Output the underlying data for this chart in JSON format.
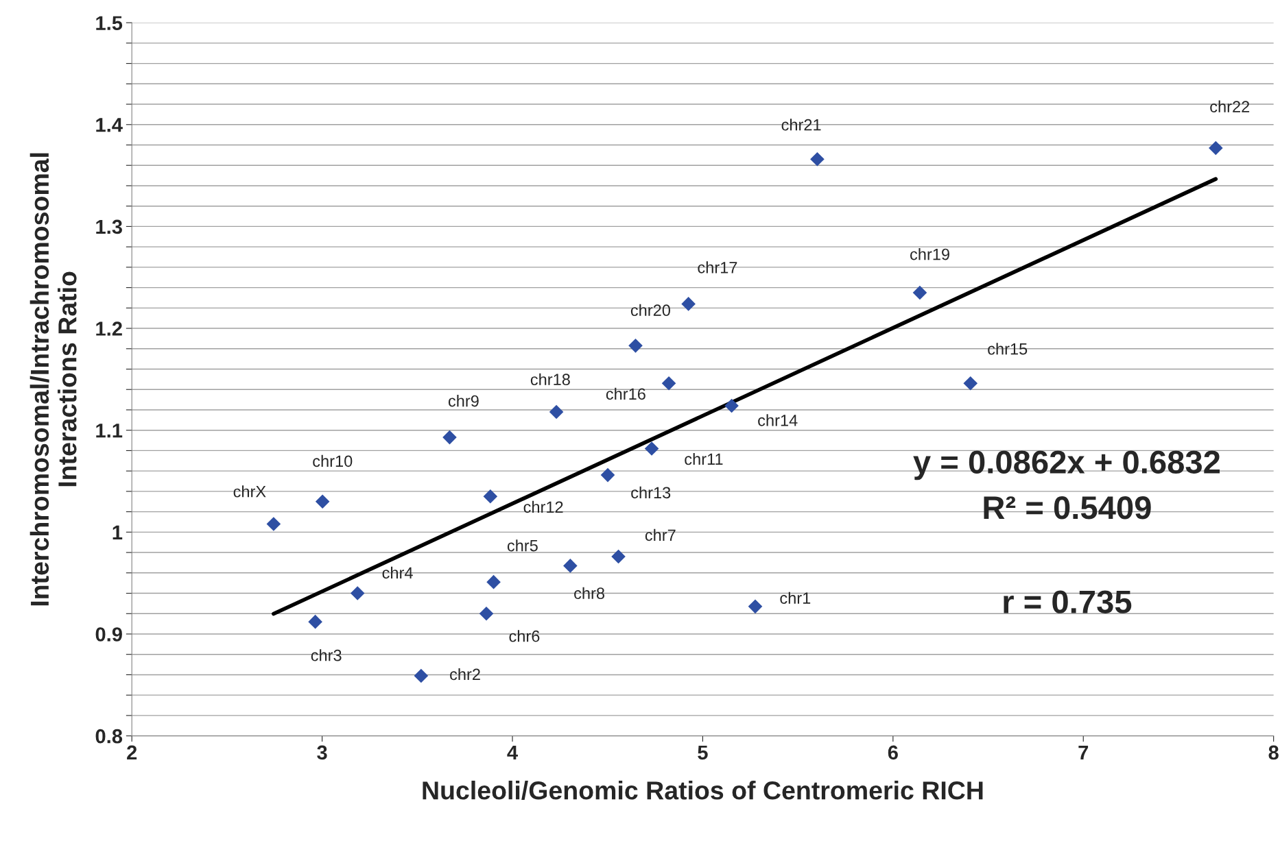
{
  "chart_data": {
    "type": "scatter",
    "xlabel": "Nucleoli/Genomic Ratios of Centromeric RICH",
    "ylabel": "Interchromosomal/Intrachromosomal\nInteractions Ratio",
    "grid": "y",
    "legend": false,
    "xlim": [
      2,
      8
    ],
    "xticks": [
      2,
      3,
      4,
      5,
      6,
      7,
      8
    ],
    "ylim": [
      0.8,
      1.5
    ],
    "yticks": [
      0.8,
      {
        "value": 0.82,
        "label": null
      },
      {
        "value": 0.84,
        "label": null
      },
      {
        "value": 0.86,
        "label": null
      },
      {
        "value": 0.88,
        "label": null
      },
      0.9,
      {
        "value": 0.92,
        "label": null
      },
      {
        "value": 0.94,
        "label": null
      },
      {
        "value": 0.96,
        "label": null
      },
      {
        "value": 0.98,
        "label": null
      },
      1,
      {
        "value": 1.02,
        "label": null
      },
      {
        "value": 1.04,
        "label": null
      },
      {
        "value": 1.06,
        "label": null
      },
      {
        "value": 1.08,
        "label": null
      },
      1.1,
      {
        "value": 1.12,
        "label": null
      },
      {
        "value": 1.14,
        "label": null
      },
      {
        "value": 1.16,
        "label": null
      },
      {
        "value": 1.18,
        "label": null
      },
      1.2,
      {
        "value": 1.22,
        "label": null
      },
      {
        "value": 1.24,
        "label": null
      },
      {
        "value": 1.26,
        "label": null
      },
      {
        "value": 1.28,
        "label": null
      },
      1.3,
      {
        "value": 1.32,
        "label": null
      },
      {
        "value": 1.34,
        "label": null
      },
      {
        "value": 1.36,
        "label": null
      },
      {
        "value": 1.38,
        "label": null
      },
      1.4,
      {
        "value": 1.42,
        "label": null
      },
      {
        "value": 1.44,
        "label": null
      },
      {
        "value": 1.46,
        "label": null
      },
      {
        "value": 1.48,
        "label": null
      },
      1.5
    ],
    "series": [
      {
        "marker": "diamond",
        "color": "#2e4fa3",
        "x": [
          2.745,
          3.002,
          2.964,
          3.186,
          3.52,
          3.67,
          3.884,
          3.901,
          3.863,
          4.231,
          4.304,
          4.557,
          4.501,
          4.647,
          4.732,
          4.822,
          4.925,
          5.152,
          5.276,
          5.602,
          6.141,
          6.407,
          7.696
        ],
        "values": [
          1.008,
          1.03,
          0.912,
          0.94,
          0.859,
          1.093,
          1.035,
          0.951,
          0.92,
          1.118,
          0.967,
          0.976,
          1.056,
          1.183,
          1.082,
          1.146,
          1.224,
          1.124,
          0.927,
          1.366,
          1.235,
          1.146,
          1.377
        ]
      },
      {
        "type": "line",
        "marker": "none",
        "color": "#000000",
        "x": [
          2.745,
          7.696
        ],
        "values": [
          0.9198,
          1.3466
        ]
      }
    ],
    "annotations": [
      {
        "text": "chrX",
        "x": 2.745,
        "y": 1.008
      },
      {
        "text": "chr10",
        "x": 3.002,
        "y": 1.03
      },
      {
        "text": "chr3",
        "x": 2.964,
        "y": 0.912
      },
      {
        "text": "chr4",
        "x": 3.186,
        "y": 0.94
      },
      {
        "text": "chr2",
        "x": 3.52,
        "y": 0.859
      },
      {
        "text": "chr9",
        "x": 3.67,
        "y": 1.093
      },
      {
        "text": "chr12",
        "x": 3.884,
        "y": 1.035
      },
      {
        "text": "chr5",
        "x": 3.901,
        "y": 0.951
      },
      {
        "text": "chr6",
        "x": 3.863,
        "y": 0.92
      },
      {
        "text": "chr18",
        "x": 4.231,
        "y": 1.118
      },
      {
        "text": "chr8",
        "x": 4.304,
        "y": 0.967
      },
      {
        "text": "chr7",
        "x": 4.557,
        "y": 0.976
      },
      {
        "text": "chr13",
        "x": 4.501,
        "y": 1.056
      },
      {
        "text": "chr20",
        "x": 4.647,
        "y": 1.183
      },
      {
        "text": "chr11",
        "x": 4.732,
        "y": 1.082
      },
      {
        "text": "chr16",
        "x": 4.822,
        "y": 1.146
      },
      {
        "text": "chr17",
        "x": 4.925,
        "y": 1.224
      },
      {
        "text": "chr14",
        "x": 5.152,
        "y": 1.124
      },
      {
        "text": "chr1",
        "x": 5.276,
        "y": 0.927
      },
      {
        "text": "chr21",
        "x": 5.602,
        "y": 1.366
      },
      {
        "text": "chr19",
        "x": 6.141,
        "y": 1.235
      },
      {
        "text": "chr15",
        "x": 6.407,
        "y": 1.146
      },
      {
        "text": "chr22",
        "x": 7.696,
        "y": 1.377
      },
      "y = 0.0862x + 0.6832",
      "R² = 0.5409",
      "r = 0.735"
    ]
  }
}
